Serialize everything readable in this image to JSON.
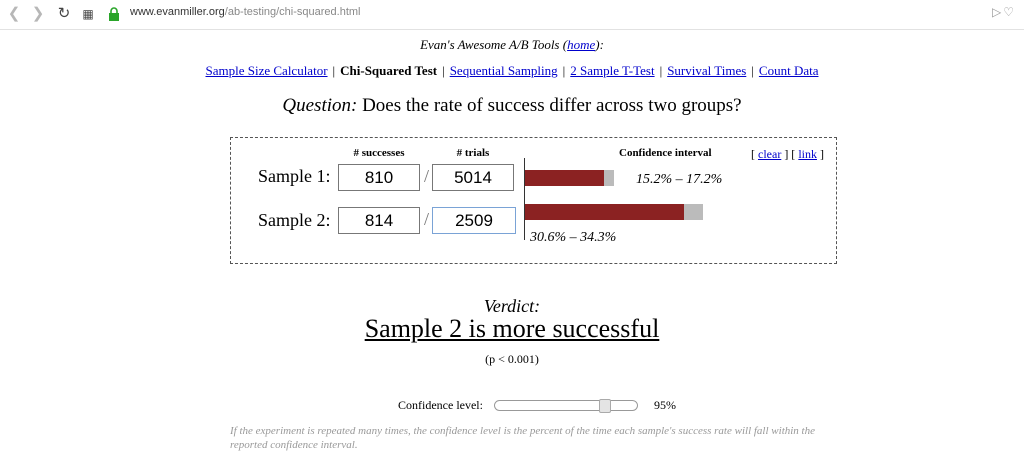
{
  "browser": {
    "url_host": "www.evanmiller.org",
    "url_path": "/ab-testing/chi-squared.html"
  },
  "header": {
    "title_prefix": "Evan's Awesome A/B Tools (",
    "home_link": "home",
    "title_suffix": "):"
  },
  "menu": {
    "items": [
      {
        "label": "Sample Size Calculator",
        "current": false
      },
      {
        "label": "Chi-Squared Test",
        "current": true
      },
      {
        "label": "Sequential Sampling",
        "current": false
      },
      {
        "label": "2 Sample T-Test",
        "current": false
      },
      {
        "label": "Survival Times",
        "current": false
      },
      {
        "label": "Count Data",
        "current": false
      }
    ],
    "separator": "|"
  },
  "question": {
    "label": "Question:",
    "text": "Does the rate of success differ across two groups?"
  },
  "form": {
    "col_successes": "# successes",
    "col_trials": "# trials",
    "col_ci": "Confidence interval",
    "clear_link": "clear",
    "link_link": "link",
    "slash": "/",
    "samples": [
      {
        "label": "Sample 1:",
        "successes": "810",
        "trials": "5014",
        "ci_text": "15.2% – 17.2%",
        "ci_low": 0.152,
        "ci_high": 0.172
      },
      {
        "label": "Sample 2:",
        "successes": "814",
        "trials": "2509",
        "ci_text": "30.6% – 34.3%",
        "ci_low": 0.306,
        "ci_high": 0.343
      }
    ]
  },
  "result": {
    "verdict_label": "Verdict:",
    "verdict": "Sample 2 is more successful",
    "pvalue": "(p < 0.001)"
  },
  "confidence": {
    "label": "Confidence level:",
    "value_text": "95%",
    "slider_fraction": 0.8,
    "explanation": "If the experiment is repeated many times, the confidence level is the percent of the time each sample's success rate will fall within the reported confidence interval."
  }
}
